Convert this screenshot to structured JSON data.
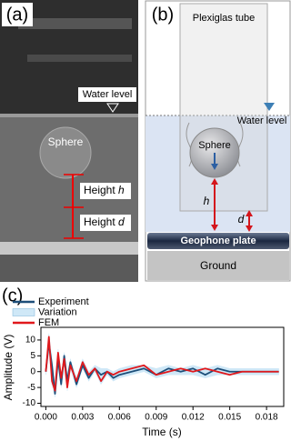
{
  "photo": {
    "panel_label": "(a)",
    "water_level": "Water level",
    "sphere": "Sphere",
    "height_h": {
      "word": "Height",
      "symbol": "h"
    },
    "height_d": {
      "word": "Height",
      "symbol": "d"
    }
  },
  "diagram": {
    "panel_label": "(b)",
    "tube": "Plexiglas tube",
    "water_level": "Water level",
    "sphere": "Sphere",
    "h": "h",
    "d": "d",
    "plate": "Geophone plate",
    "ground": "Ground"
  },
  "chart_data": {
    "type": "line",
    "panel_label": "(c)",
    "x_label": "Time (s)",
    "y_label": "Amplitude (V)",
    "x": [
      0,
      0.00025,
      0.0005,
      0.00075,
      0.001,
      0.00125,
      0.0015,
      0.00175,
      0.002,
      0.0025,
      0.003,
      0.0035,
      0.004,
      0.0045,
      0.005,
      0.0055,
      0.006,
      0.007,
      0.008,
      0.009,
      0.01,
      0.011,
      0.012,
      0.013,
      0.014,
      0.015,
      0.016,
      0.017,
      0.018,
      0.019
    ],
    "series": [
      {
        "name": "Experiment",
        "color": "#1d4f7a",
        "values": [
          0,
          9,
          2,
          -7,
          4,
          -4,
          5,
          -3,
          3,
          -4,
          2,
          -2,
          1,
          -1,
          0,
          -2,
          -1,
          0,
          1,
          -1,
          1,
          0,
          1,
          -1,
          1,
          0,
          0,
          0,
          0,
          0
        ]
      },
      {
        "name": "Variation",
        "color": "#cfe8f7",
        "upper": [
          1,
          12,
          4,
          -4,
          7,
          -1,
          6,
          -1,
          4,
          -2,
          4,
          0,
          2,
          1,
          1,
          0,
          1,
          2,
          2,
          1,
          2,
          1,
          2,
          1,
          2,
          1,
          1,
          1,
          1,
          1
        ],
        "lower": [
          -1,
          8,
          -4,
          -8,
          2,
          -5,
          3,
          -6,
          1,
          -5,
          1,
          -3,
          0,
          -4,
          -1,
          -3,
          -2,
          -1,
          0,
          -2,
          -1,
          -1,
          -1,
          -2,
          -1,
          -1,
          -1,
          -1,
          -1,
          -1
        ]
      },
      {
        "name": "FEM",
        "color": "#e0181c",
        "values": [
          0,
          11,
          -3,
          -6,
          6,
          -2,
          4,
          -5,
          2,
          -3,
          3,
          -1,
          1,
          -3,
          0,
          -1,
          0,
          1,
          2,
          -1,
          0,
          1,
          0,
          1,
          0,
          -1,
          0,
          0,
          0,
          0
        ]
      }
    ],
    "xlim": [
      -0.0004,
      0.0194
    ],
    "ylim": [
      -11,
      14
    ],
    "xticks": [
      {
        "value": 0,
        "label": "0.000"
      },
      {
        "value": 0.003,
        "label": "0.003"
      },
      {
        "value": 0.006,
        "label": "0.006"
      },
      {
        "value": 0.009,
        "label": "0.009"
      },
      {
        "value": 0.012,
        "label": "0.012"
      },
      {
        "value": 0.015,
        "label": "0.015"
      },
      {
        "value": 0.018,
        "label": "0.018"
      }
    ],
    "yticks": [
      -10,
      -5,
      0,
      5,
      10
    ]
  }
}
